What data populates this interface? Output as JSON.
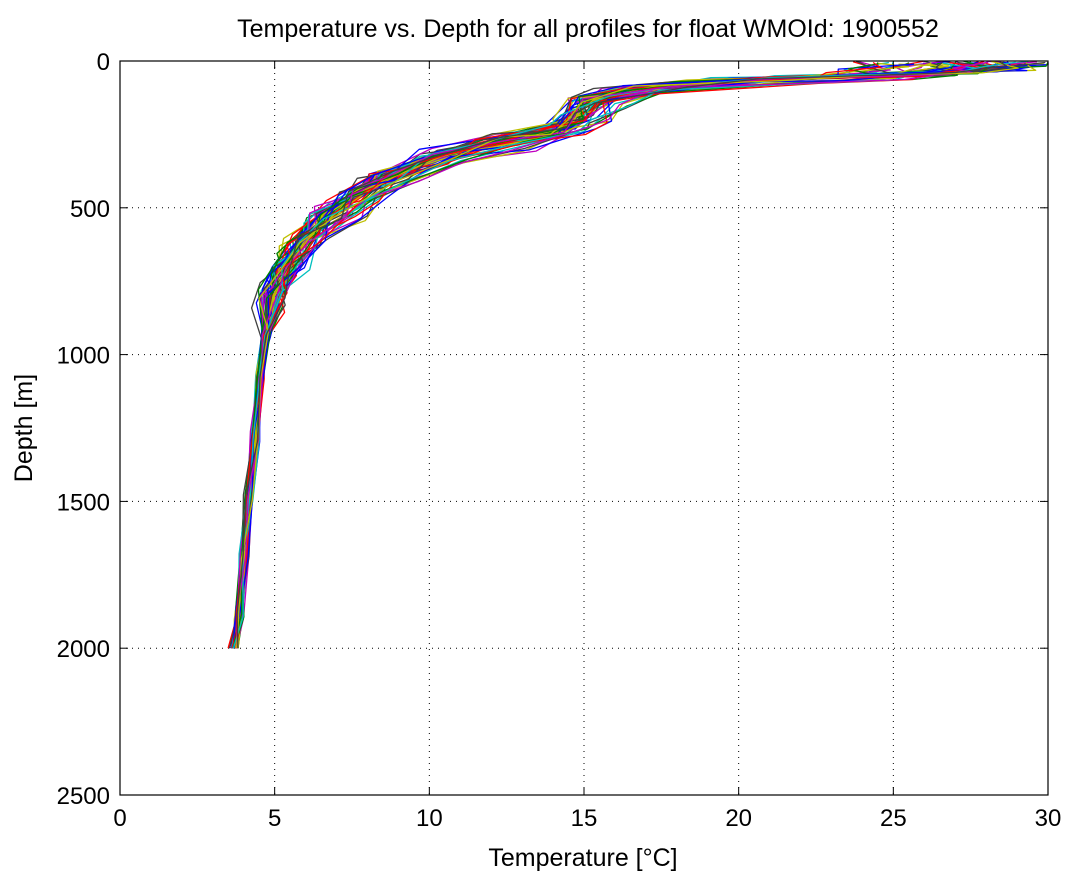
{
  "chart_data": {
    "type": "line",
    "title": "Temperature vs. Depth for all profiles for float WMOId: 1900552",
    "xlabel": "Temperature [°C]",
    "ylabel": "Depth [m]",
    "xlim": [
      0,
      30
    ],
    "ylim": [
      0,
      2500
    ],
    "y_reversed": true,
    "x_ticks": [
      "0",
      "5",
      "10",
      "15",
      "20",
      "25",
      "30"
    ],
    "y_ticks": [
      "0",
      "500",
      "1000",
      "1500",
      "2000",
      "2500"
    ],
    "grid": true,
    "profile_colors": [
      "#0000ff",
      "#008000",
      "#ff0000",
      "#00bfbf",
      "#bf00bf",
      "#bfbf00",
      "#404040"
    ],
    "series": [
      {
        "x": [
          27.5,
          27.4,
          26.5,
          24,
          20,
          17,
          15.2,
          14.6,
          14.0,
          12,
          10,
          8.5,
          7.5,
          6.5,
          5.8,
          5.2,
          4.9,
          4.7,
          4.55,
          4.4,
          4.2,
          4.05,
          3.85,
          3.7
        ],
        "y": [
          5,
          20,
          40,
          50,
          62,
          85,
          130,
          200,
          240,
          280,
          330,
          400,
          460,
          540,
          620,
          720,
          820,
          950,
          1100,
          1300,
          1500,
          1700,
          1900,
          2000
        ]
      },
      {
        "x": [
          28.8,
          28.7,
          27.8,
          25,
          21,
          17.5,
          15.5,
          14.8,
          14.2,
          12.5,
          10.5,
          9.0,
          8.0,
          7.0,
          6.2,
          5.5,
          5.0,
          4.7,
          4.5,
          4.35,
          4.15,
          4.0,
          3.85,
          3.7
        ],
        "y": [
          5,
          18,
          35,
          48,
          60,
          90,
          135,
          190,
          225,
          270,
          320,
          390,
          450,
          520,
          600,
          690,
          790,
          920,
          1080,
          1280,
          1480,
          1680,
          1880,
          2000
        ]
      },
      {
        "x": [
          26.0,
          25.9,
          25.0,
          23,
          19.5,
          16.8,
          15.0,
          14.5,
          13.8,
          11.8,
          9.8,
          8.2,
          7.2,
          6.3,
          5.6,
          5.0,
          4.8,
          4.65,
          4.5,
          4.35,
          4.2,
          4.0,
          3.8,
          3.6
        ],
        "y": [
          5,
          22,
          45,
          55,
          70,
          95,
          140,
          210,
          250,
          295,
          345,
          410,
          470,
          550,
          640,
          740,
          840,
          970,
          1120,
          1320,
          1520,
          1720,
          1900,
          2000
        ]
      },
      {
        "x": [
          29.3,
          29.2,
          28.5,
          26,
          22,
          18,
          16,
          15.0,
          14.3,
          12.2,
          10.2,
          8.8,
          7.8,
          6.8,
          6.0,
          5.3,
          4.95,
          4.7,
          4.5,
          4.3,
          4.1,
          3.95,
          3.8,
          3.65
        ],
        "y": [
          5,
          15,
          30,
          42,
          55,
          80,
          120,
          180,
          220,
          265,
          315,
          380,
          440,
          510,
          590,
          680,
          780,
          910,
          1070,
          1270,
          1470,
          1670,
          1870,
          2000
        ]
      },
      {
        "x": [
          24.5,
          24.4,
          23.8,
          22,
          19,
          16.5,
          15.0,
          14.6,
          13.9,
          12.0,
          10.1,
          8.6,
          7.6,
          6.6,
          5.9,
          5.2,
          4.85,
          4.65,
          4.5,
          4.35,
          4.2,
          4.0,
          3.85,
          3.7
        ],
        "y": [
          5,
          25,
          45,
          58,
          72,
          95,
          140,
          205,
          245,
          285,
          335,
          400,
          455,
          535,
          615,
          715,
          815,
          945,
          1095,
          1295,
          1495,
          1695,
          1895,
          2000
        ]
      },
      {
        "x": [
          27.0,
          26.8,
          26.0,
          24.5,
          21.5,
          17.8,
          16.0,
          15.5,
          15.0,
          13.0,
          11.0,
          9.5,
          8.5,
          7.5,
          6.5,
          5.7,
          5.1,
          4.75,
          4.55,
          4.4,
          4.2,
          4.05,
          3.9,
          3.75
        ],
        "y": [
          5,
          22,
          48,
          62,
          75,
          100,
          145,
          200,
          240,
          290,
          340,
          405,
          460,
          530,
          610,
          700,
          800,
          930,
          1090,
          1290,
          1490,
          1690,
          1890,
          2000
        ]
      },
      {
        "x": [
          28.0,
          27.9,
          27.0,
          25.0,
          20.5,
          17.2,
          15.3,
          14.7,
          14.1,
          12.3,
          10.4,
          8.9,
          7.9,
          6.9,
          6.1,
          5.4,
          4.95,
          4.7,
          4.52,
          4.37,
          4.18,
          4.02,
          3.87,
          3.72
        ],
        "y": [
          5,
          20,
          38,
          50,
          63,
          88,
          132,
          195,
          235,
          275,
          325,
          392,
          452,
          525,
          605,
          700,
          800,
          930,
          1085,
          1285,
          1485,
          1685,
          1885,
          2000
        ]
      }
    ]
  }
}
